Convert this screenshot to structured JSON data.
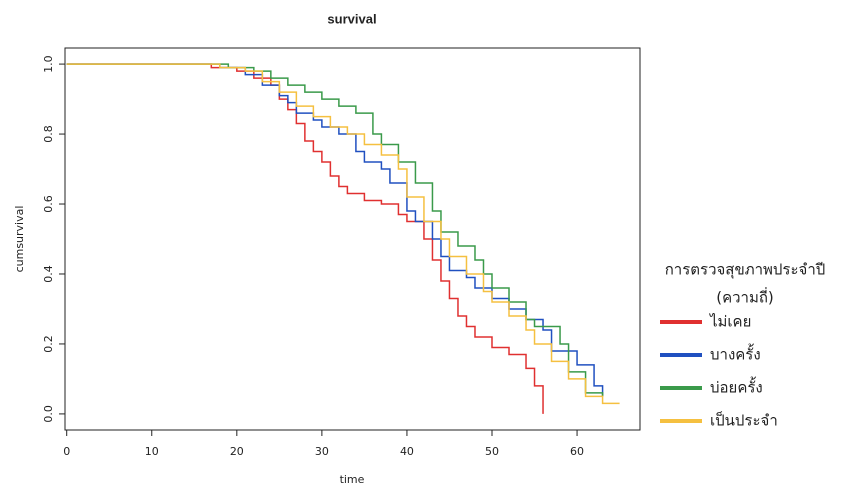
{
  "chart_data": {
    "type": "step",
    "title": "survival",
    "x_label": "time",
    "y_label": "cumsurvival",
    "legend_title": [
      "การตรวจสุขภาพประจำปี",
      "(ความถี่)"
    ],
    "xlim": [
      -0.2,
      67.4
    ],
    "ylim": [
      -0.046,
      1.046
    ],
    "xticks": [
      0,
      10,
      20,
      30,
      40,
      50,
      60
    ],
    "yticks": [
      {
        "value": 0,
        "label": "0.0"
      },
      0.2,
      0.4,
      0.6,
      0.8,
      {
        "value": 1,
        "label": "1.0"
      }
    ],
    "series": [
      {
        "name": "ไม่เคย",
        "color": "#e03030",
        "x": [
          0,
          17,
          20,
          22,
          24,
          25,
          26,
          27,
          28,
          29,
          30,
          31,
          32,
          33,
          35,
          37,
          39,
          40,
          42,
          43,
          44,
          45,
          46,
          47,
          48,
          50,
          52,
          54,
          55,
          56
        ],
        "values": [
          1.0,
          0.99,
          0.98,
          0.96,
          0.94,
          0.9,
          0.87,
          0.83,
          0.78,
          0.75,
          0.72,
          0.68,
          0.65,
          0.63,
          0.61,
          0.6,
          0.57,
          0.55,
          0.5,
          0.44,
          0.38,
          0.33,
          0.28,
          0.25,
          0.22,
          0.19,
          0.17,
          0.13,
          0.08,
          0
        ]
      },
      {
        "name": "บางครั้ง",
        "color": "#2050c0",
        "x": [
          0,
          18,
          21,
          23,
          25,
          26,
          27,
          29,
          30,
          32,
          34,
          35,
          37,
          38,
          40,
          41,
          43,
          44,
          45,
          47,
          48,
          50,
          52,
          54,
          56,
          57,
          60,
          62,
          63
        ],
        "values": [
          1.0,
          0.99,
          0.97,
          0.94,
          0.91,
          0.89,
          0.86,
          0.84,
          0.82,
          0.8,
          0.75,
          0.72,
          0.7,
          0.66,
          0.58,
          0.55,
          0.5,
          0.45,
          0.41,
          0.39,
          0.36,
          0.33,
          0.3,
          0.27,
          0.24,
          0.18,
          0.14,
          0.08,
          0.05
        ]
      },
      {
        "name": "บ่อยครั้ง",
        "color": "#3a9a4a",
        "x": [
          0,
          19,
          22,
          24,
          26,
          28,
          30,
          32,
          34,
          36,
          37,
          39,
          41,
          43,
          44,
          46,
          48,
          49,
          50,
          52,
          54,
          55,
          58,
          59,
          61,
          63
        ],
        "values": [
          1.0,
          0.99,
          0.98,
          0.96,
          0.94,
          0.92,
          0.9,
          0.88,
          0.86,
          0.8,
          0.77,
          0.72,
          0.66,
          0.58,
          0.52,
          0.48,
          0.44,
          0.4,
          0.36,
          0.32,
          0.27,
          0.25,
          0.2,
          0.12,
          0.06,
          0.05
        ]
      },
      {
        "name": "เป็นประจำ",
        "color": "#f5c040",
        "x": [
          0,
          18,
          21,
          23,
          25,
          27,
          29,
          31,
          33,
          35,
          37,
          39,
          40,
          42,
          44,
          45,
          47,
          49,
          50,
          52,
          54,
          55,
          57,
          59,
          61,
          63,
          65
        ],
        "values": [
          1.0,
          0.99,
          0.98,
          0.95,
          0.92,
          0.88,
          0.85,
          0.82,
          0.8,
          0.77,
          0.74,
          0.7,
          0.62,
          0.55,
          0.5,
          0.45,
          0.4,
          0.35,
          0.32,
          0.28,
          0.24,
          0.2,
          0.15,
          0.1,
          0.05,
          0.03,
          0.03
        ]
      }
    ]
  }
}
